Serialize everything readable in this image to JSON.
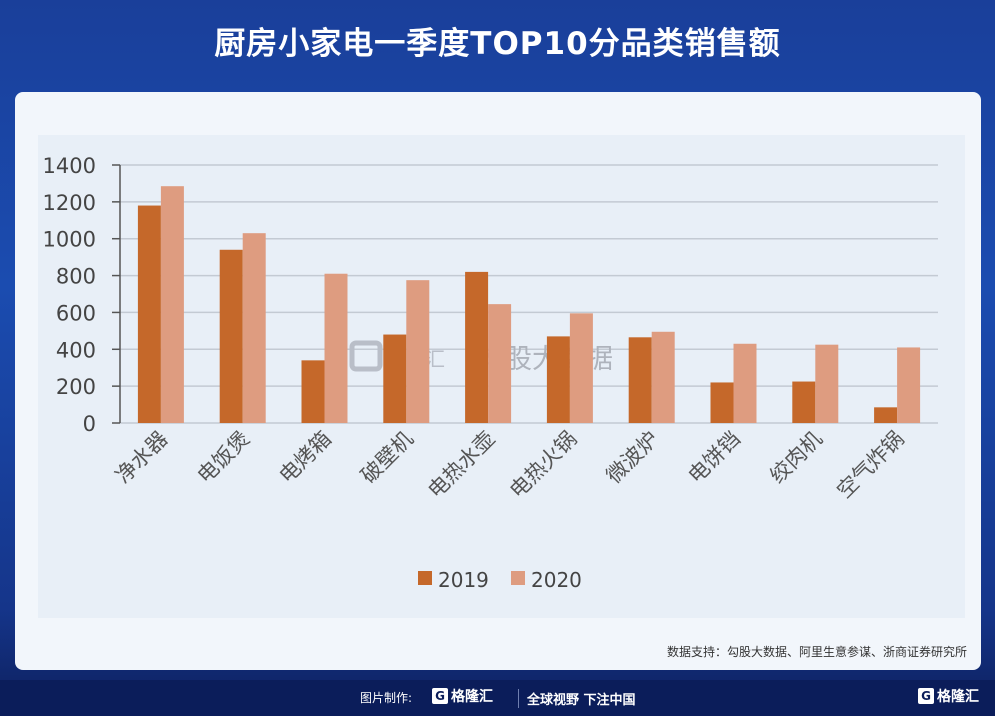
{
  "title": "厨房小家电一季度TOP10分品类销售额",
  "source": "数据支持：勾股大数据、阿里生意参谋、浙商证券研究所",
  "watermark": {
    "brand": "格隆汇",
    "text": "勾股大数据"
  },
  "footer": {
    "made_by": "图片制作:",
    "brand": "格隆汇",
    "slogan": "全球视野 下注中国",
    "brand_right": "格隆汇"
  },
  "chart_data": {
    "type": "bar",
    "categories": [
      "净水器",
      "电饭煲",
      "电烤箱",
      "破壁机",
      "电热水壶",
      "电热火锅",
      "微波炉",
      "电饼铛",
      "绞肉机",
      "空气炸锅"
    ],
    "series": [
      {
        "name": "2019",
        "color": "#c5682a",
        "values": [
          1180,
          940,
          340,
          480,
          820,
          470,
          465,
          220,
          225,
          85
        ]
      },
      {
        "name": "2020",
        "color": "#de9c80",
        "values": [
          1285,
          1030,
          810,
          775,
          645,
          595,
          495,
          430,
          425,
          410
        ]
      }
    ],
    "yticks": [
      0,
      200,
      400,
      600,
      800,
      1000,
      1200,
      1400
    ],
    "ylim": [
      0,
      1400
    ],
    "grid": true,
    "legend": "bottom"
  }
}
